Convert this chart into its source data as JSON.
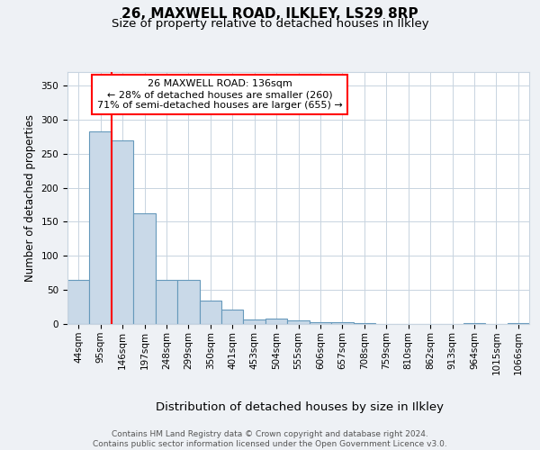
{
  "title_line1": "26, MAXWELL ROAD, ILKLEY, LS29 8RP",
  "title_line2": "Size of property relative to detached houses in Ilkley",
  "xlabel": "Distribution of detached houses by size in Ilkley",
  "ylabel": "Number of detached properties",
  "footer": "Contains HM Land Registry data © Crown copyright and database right 2024.\nContains public sector information licensed under the Open Government Licence v3.0.",
  "bin_labels": [
    "44sqm",
    "95sqm",
    "146sqm",
    "197sqm",
    "248sqm",
    "299sqm",
    "350sqm",
    "401sqm",
    "453sqm",
    "504sqm",
    "555sqm",
    "606sqm",
    "657sqm",
    "708sqm",
    "759sqm",
    "810sqm",
    "862sqm",
    "913sqm",
    "964sqm",
    "1015sqm",
    "1066sqm"
  ],
  "bar_values": [
    65,
    283,
    270,
    163,
    65,
    65,
    35,
    21,
    7,
    8,
    5,
    3,
    3,
    1,
    0,
    0,
    0,
    0,
    1,
    0,
    1
  ],
  "bar_color": "#c9d9e8",
  "bar_edge_color": "#6699bb",
  "annotation_box_text": "26 MAXWELL ROAD: 136sqm\n← 28% of detached houses are smaller (260)\n71% of semi-detached houses are larger (655) →",
  "annotation_box_color": "white",
  "annotation_box_edge_color": "red",
  "vline_color": "red",
  "vline_x_bin": 2,
  "ylim": [
    0,
    370
  ],
  "yticks": [
    0,
    50,
    100,
    150,
    200,
    250,
    300,
    350
  ],
  "background_color": "#eef1f5",
  "plot_bg_color": "white",
  "grid_color": "#c8d4e0",
  "title1_fontsize": 11,
  "title2_fontsize": 9.5,
  "ylabel_fontsize": 8.5,
  "xlabel_fontsize": 9.5,
  "tick_fontsize": 7.5,
  "ann_fontsize": 8,
  "footer_fontsize": 6.5
}
